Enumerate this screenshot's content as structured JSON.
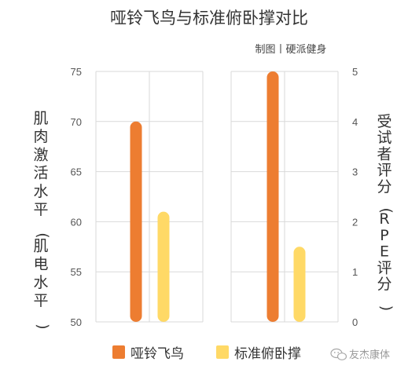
{
  "title": "哑铃飞鸟与标准俯卧撑对比",
  "credit": "制图丨硬派健身",
  "watermark": "友杰康体",
  "colors": {
    "dumbbell_fly": "#ed7d31",
    "standard_pushup": "#ffd966",
    "grid": "#d9d9d9",
    "text": "#333333"
  },
  "chart_data": [
    {
      "type": "bar",
      "ylabel": "肌肉激活水平(肌电水平)",
      "ylim": [
        50,
        75
      ],
      "yticks": [
        "50",
        "55",
        "60",
        "65",
        "70",
        "75"
      ],
      "grid": true,
      "series": [
        {
          "name": "哑铃飞鸟",
          "values": [
            70
          ]
        },
        {
          "name": "标准俯卧撑",
          "values": [
            61
          ]
        }
      ]
    },
    {
      "type": "bar",
      "ylabel": "受试者评分(RPE评分)",
      "ylim": [
        0,
        5
      ],
      "yticks": [
        "0",
        "1",
        "2",
        "3",
        "4",
        "5"
      ],
      "grid": true,
      "series": [
        {
          "name": "哑铃飞鸟",
          "values": [
            5
          ]
        },
        {
          "name": "标准俯卧撑",
          "values": [
            1.5
          ]
        }
      ]
    }
  ],
  "legend": {
    "position": "bottom",
    "items": [
      "哑铃飞鸟",
      "标准俯卧撑"
    ]
  }
}
